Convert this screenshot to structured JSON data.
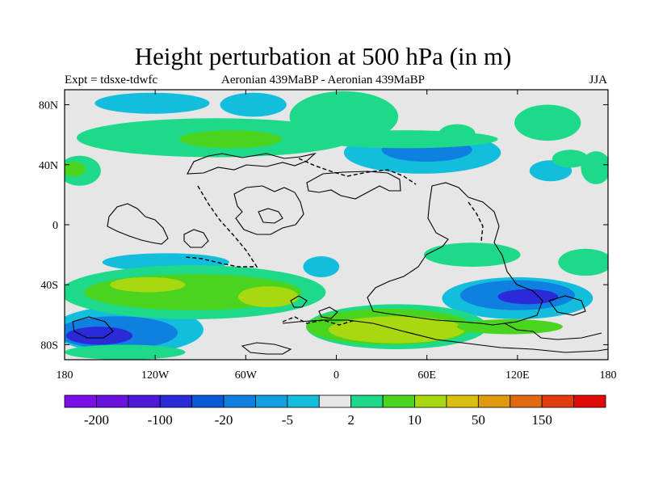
{
  "chart_data": {
    "type": "heatmap",
    "title": "Height perturbation at 500 hPa (in m)",
    "subtitle_left": "Expt = tdsxe-tdwfc",
    "subtitle_center": "Aeronian 439MaBP - Aeronian 439MaBP",
    "subtitle_right": "JJA",
    "x_ticks": [
      {
        "value": -180,
        "label": "180"
      },
      {
        "value": -120,
        "label": "120W"
      },
      {
        "value": -60,
        "label": "60W"
      },
      {
        "value": 0,
        "label": "0"
      },
      {
        "value": 60,
        "label": "60E"
      },
      {
        "value": 120,
        "label": "120E"
      },
      {
        "value": 180,
        "label": "180"
      }
    ],
    "y_ticks": [
      {
        "value": 80,
        "label": "80N"
      },
      {
        "value": 40,
        "label": "40N"
      },
      {
        "value": 0,
        "label": "0"
      },
      {
        "value": -40,
        "label": "40S"
      },
      {
        "value": -80,
        "label": "80S"
      }
    ],
    "xlim": [
      -180,
      180
    ],
    "ylim": [
      -90,
      90
    ],
    "colorbar": {
      "colors": [
        "#7a10e8",
        "#6a12dc",
        "#4d18d6",
        "#2a2ad8",
        "#0a5ad8",
        "#1080e0",
        "#13a0e0",
        "#12bedc",
        "#e6e6e6",
        "#1ed98a",
        "#4ad41e",
        "#a8d810",
        "#d8c010",
        "#e09a10",
        "#e06a10",
        "#e03c10",
        "#e00a0a"
      ],
      "labels": [
        {
          "boundary": 1,
          "text": "-200"
        },
        {
          "boundary": 3,
          "text": "-100"
        },
        {
          "boundary": 5,
          "text": "-20"
        },
        {
          "boundary": 7,
          "text": "-5"
        },
        {
          "boundary": 9,
          "text": "2"
        },
        {
          "boundary": 11,
          "text": "10"
        },
        {
          "boundary": 13,
          "text": "50"
        },
        {
          "boundary": 15,
          "text": "150"
        }
      ]
    },
    "regions": [
      {
        "level": "-5",
        "color": "#12bedc",
        "lon": -122,
        "lat": 81,
        "rx": 38,
        "ry": 7
      },
      {
        "level": "-5",
        "color": "#12bedc",
        "lon": -55,
        "lat": 80,
        "rx": 22,
        "ry": 8
      },
      {
        "level": "-5",
        "color": "#12bedc",
        "lon": 57,
        "lat": 48,
        "rx": 52,
        "ry": 14
      },
      {
        "level": "-20",
        "color": "#1080e0",
        "lon": 60,
        "lat": 50,
        "rx": 30,
        "ry": 8
      },
      {
        "level": "-5",
        "color": "#12bedc",
        "lon": 142,
        "lat": 36,
        "rx": 14,
        "ry": 7
      },
      {
        "level": "-5",
        "color": "#12bedc",
        "lon": -113,
        "lat": -25,
        "rx": 42,
        "ry": 6
      },
      {
        "level": "-5",
        "color": "#12bedc",
        "lon": -10,
        "lat": -28,
        "rx": 12,
        "ry": 7
      },
      {
        "level": "-5",
        "color": "#12bedc",
        "lon": 120,
        "lat": -49,
        "rx": 50,
        "ry": 14
      },
      {
        "level": "-20",
        "color": "#1080e0",
        "lon": 120,
        "lat": -47,
        "rx": 38,
        "ry": 10
      },
      {
        "level": "-100",
        "color": "#2a2ad8",
        "lon": 127,
        "lat": -48,
        "rx": 20,
        "ry": 5
      },
      {
        "level": "-5",
        "color": "#12bedc",
        "lon": -138,
        "lat": -70,
        "rx": 50,
        "ry": 16
      },
      {
        "level": "-20",
        "color": "#1080e0",
        "lon": -145,
        "lat": -72,
        "rx": 40,
        "ry": 11
      },
      {
        "level": "-100",
        "color": "#2a2ad8",
        "lon": -157,
        "lat": -74,
        "rx": 22,
        "ry": 6
      },
      {
        "level": "2",
        "color": "#1ed98a",
        "lon": -80,
        "lat": 58,
        "rx": 92,
        "ry": 13
      },
      {
        "level": "10",
        "color": "#4ad41e",
        "lon": -70,
        "lat": 57,
        "rx": 34,
        "ry": 6
      },
      {
        "level": "2",
        "color": "#1ed98a",
        "lon": -170,
        "lat": 36,
        "rx": 14,
        "ry": 10
      },
      {
        "level": "10",
        "color": "#4ad41e",
        "lon": -174,
        "lat": 37,
        "rx": 8,
        "ry": 5
      },
      {
        "level": "2",
        "color": "#1ed98a",
        "lon": 172,
        "lat": 38,
        "rx": 10,
        "ry": 11
      },
      {
        "level": "2",
        "color": "#1ed98a",
        "lon": 5,
        "lat": 72,
        "rx": 36,
        "ry": 17
      },
      {
        "level": "2",
        "color": "#1ed98a",
        "lon": 45,
        "lat": 57,
        "rx": 62,
        "ry": 6
      },
      {
        "level": "2",
        "color": "#1ed98a",
        "lon": 80,
        "lat": 61,
        "rx": 12,
        "ry": 6
      },
      {
        "level": "2",
        "color": "#1ed98a",
        "lon": 140,
        "lat": 68,
        "rx": 22,
        "ry": 12
      },
      {
        "level": "2",
        "color": "#1ed98a",
        "lon": 155,
        "lat": 44,
        "rx": 12,
        "ry": 6
      },
      {
        "level": "2",
        "color": "#1ed98a",
        "lon": 90,
        "lat": -20,
        "rx": 32,
        "ry": 8
      },
      {
        "level": "2",
        "color": "#1ed98a",
        "lon": 165,
        "lat": -25,
        "rx": 18,
        "ry": 9
      },
      {
        "level": "2",
        "color": "#1ed98a",
        "lon": -95,
        "lat": -45,
        "rx": 88,
        "ry": 18
      },
      {
        "level": "10",
        "color": "#4ad41e",
        "lon": -95,
        "lat": -45,
        "rx": 72,
        "ry": 12
      },
      {
        "level": "50",
        "color": "#a8d810",
        "lon": -125,
        "lat": -40,
        "rx": 25,
        "ry": 5
      },
      {
        "level": "50",
        "color": "#a8d810",
        "lon": -45,
        "lat": -48,
        "rx": 20,
        "ry": 7
      },
      {
        "level": "2",
        "color": "#1ed98a",
        "lon": 40,
        "lat": -68,
        "rx": 60,
        "ry": 15
      },
      {
        "level": "10",
        "color": "#4ad41e",
        "lon": 35,
        "lat": -68,
        "rx": 55,
        "ry": 12
      },
      {
        "level": "50",
        "color": "#a8d810",
        "lon": 40,
        "lat": -70,
        "rx": 45,
        "ry": 9
      },
      {
        "level": "10",
        "color": "#4ad41e",
        "lon": 115,
        "lat": -68,
        "rx": 35,
        "ry": 5
      },
      {
        "level": "2",
        "color": "#1ed98a",
        "lon": -140,
        "lat": -85,
        "rx": 40,
        "ry": 5
      }
    ]
  }
}
